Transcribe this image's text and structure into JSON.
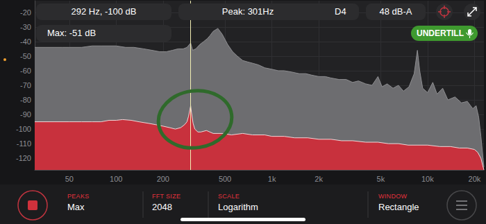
{
  "header": {
    "cursor": "292 Hz, -100 dB",
    "peak": "Peak: 301Hz",
    "note": "D4",
    "level": "48 dB-A",
    "max": "Max: -51 dB",
    "button": "UNDERTILL"
  },
  "chart_data": {
    "type": "area",
    "log": "x",
    "grid": true,
    "xlim": [
      30,
      23000
    ],
    "xticks": [
      50,
      100,
      200,
      500,
      {
        "value": 1000,
        "label": "1k"
      },
      {
        "value": 2000,
        "label": "2k"
      },
      {
        "value": 5000,
        "label": "5k"
      },
      {
        "value": 10000,
        "label": "10k"
      },
      {
        "value": 20000,
        "label": "20k"
      }
    ],
    "ylim": [
      -128,
      -12
    ],
    "yticks": [
      -20,
      -30,
      -40,
      -50,
      -60,
      -70,
      -80,
      -90,
      -100,
      -110,
      -120
    ],
    "vline": 301,
    "series": [
      {
        "color": "#6d6d70",
        "x": [
          30,
          35,
          40,
          45,
          50,
          60,
          70,
          80,
          90,
          100,
          115,
          130,
          150,
          170,
          190,
          210,
          230,
          250,
          270,
          285,
          301,
          310,
          325,
          345,
          365,
          385,
          400,
          420,
          450,
          480,
          520,
          560,
          600,
          650,
          700,
          760,
          820,
          900,
          1000,
          1100,
          1200,
          1350,
          1500,
          1650,
          1800,
          2000,
          2200,
          2400,
          2700,
          3000,
          3300,
          3600,
          4000,
          4400,
          4800,
          5100,
          5500,
          6000,
          6500,
          7000,
          7600,
          8200,
          8600,
          8900,
          9300,
          10000,
          10800,
          11500,
          12500,
          13500,
          15000,
          16500,
          18000,
          19500,
          20500,
          21300,
          22000,
          22600,
          23000
        ],
        "values": [
          -44,
          -44,
          -44,
          -44,
          -44,
          -44,
          -43,
          -43,
          -43,
          -43,
          -44,
          -44,
          -45,
          -46,
          -47,
          -47,
          -46,
          -45,
          -45,
          -44,
          -41,
          -46,
          -45,
          -42,
          -40,
          -38,
          -36,
          -33,
          -31,
          -35,
          -42,
          -47,
          -50,
          -53,
          -54,
          -55,
          -56,
          -58,
          -59,
          -60,
          -60,
          -61,
          -62,
          -62,
          -63,
          -64,
          -64,
          -65,
          -66,
          -66,
          -68,
          -67,
          -69,
          -70,
          -64,
          -71,
          -69,
          -72,
          -70,
          -74,
          -71,
          -62,
          -46,
          -60,
          -72,
          -75,
          -68,
          -76,
          -72,
          -80,
          -78,
          -82,
          -81,
          -86,
          -84,
          -92,
          -105,
          -118,
          -126
        ]
      },
      {
        "color": "#c8313d",
        "x": [
          30,
          40,
          50,
          60,
          70,
          80,
          90,
          100,
          110,
          125,
          140,
          160,
          180,
          200,
          220,
          240,
          260,
          275,
          285,
          292,
          297,
          301,
          305,
          312,
          320,
          335,
          350,
          380,
          420,
          480,
          550,
          650,
          750,
          900,
          1000,
          1200,
          1400,
          1700,
          2000,
          2400,
          2800,
          3300,
          4000,
          4800,
          5600,
          6500,
          7500,
          8500,
          10000,
          12000,
          14000,
          16000,
          18000,
          20000,
          21000,
          22000,
          22600,
          23000
        ],
        "values": [
          -95,
          -95,
          -95,
          -95,
          -95,
          -95,
          -94,
          -94,
          -93.5,
          -94,
          -95,
          -96,
          -97,
          -98,
          -99,
          -100,
          -99,
          -97,
          -95,
          -91,
          -87,
          -84,
          -89,
          -96,
          -100,
          -102,
          -102,
          -101,
          -103,
          -103,
          -104,
          -103,
          -104,
          -104,
          -105,
          -105,
          -106,
          -106,
          -107,
          -107,
          -108,
          -108,
          -109,
          -109,
          -110,
          -110,
          -111,
          -111,
          -111,
          -112,
          -112,
          -113,
          -113,
          -114,
          -116,
          -120,
          -125,
          -128
        ]
      }
    ]
  },
  "controls": [
    {
      "label": "PEAKS",
      "value": "Max"
    },
    {
      "label": "FFT SIZE",
      "value": "2048"
    },
    {
      "label": "SCALE",
      "value": "Logarithm"
    },
    {
      "label": "WINDOW",
      "value": "Rectangle"
    }
  ]
}
